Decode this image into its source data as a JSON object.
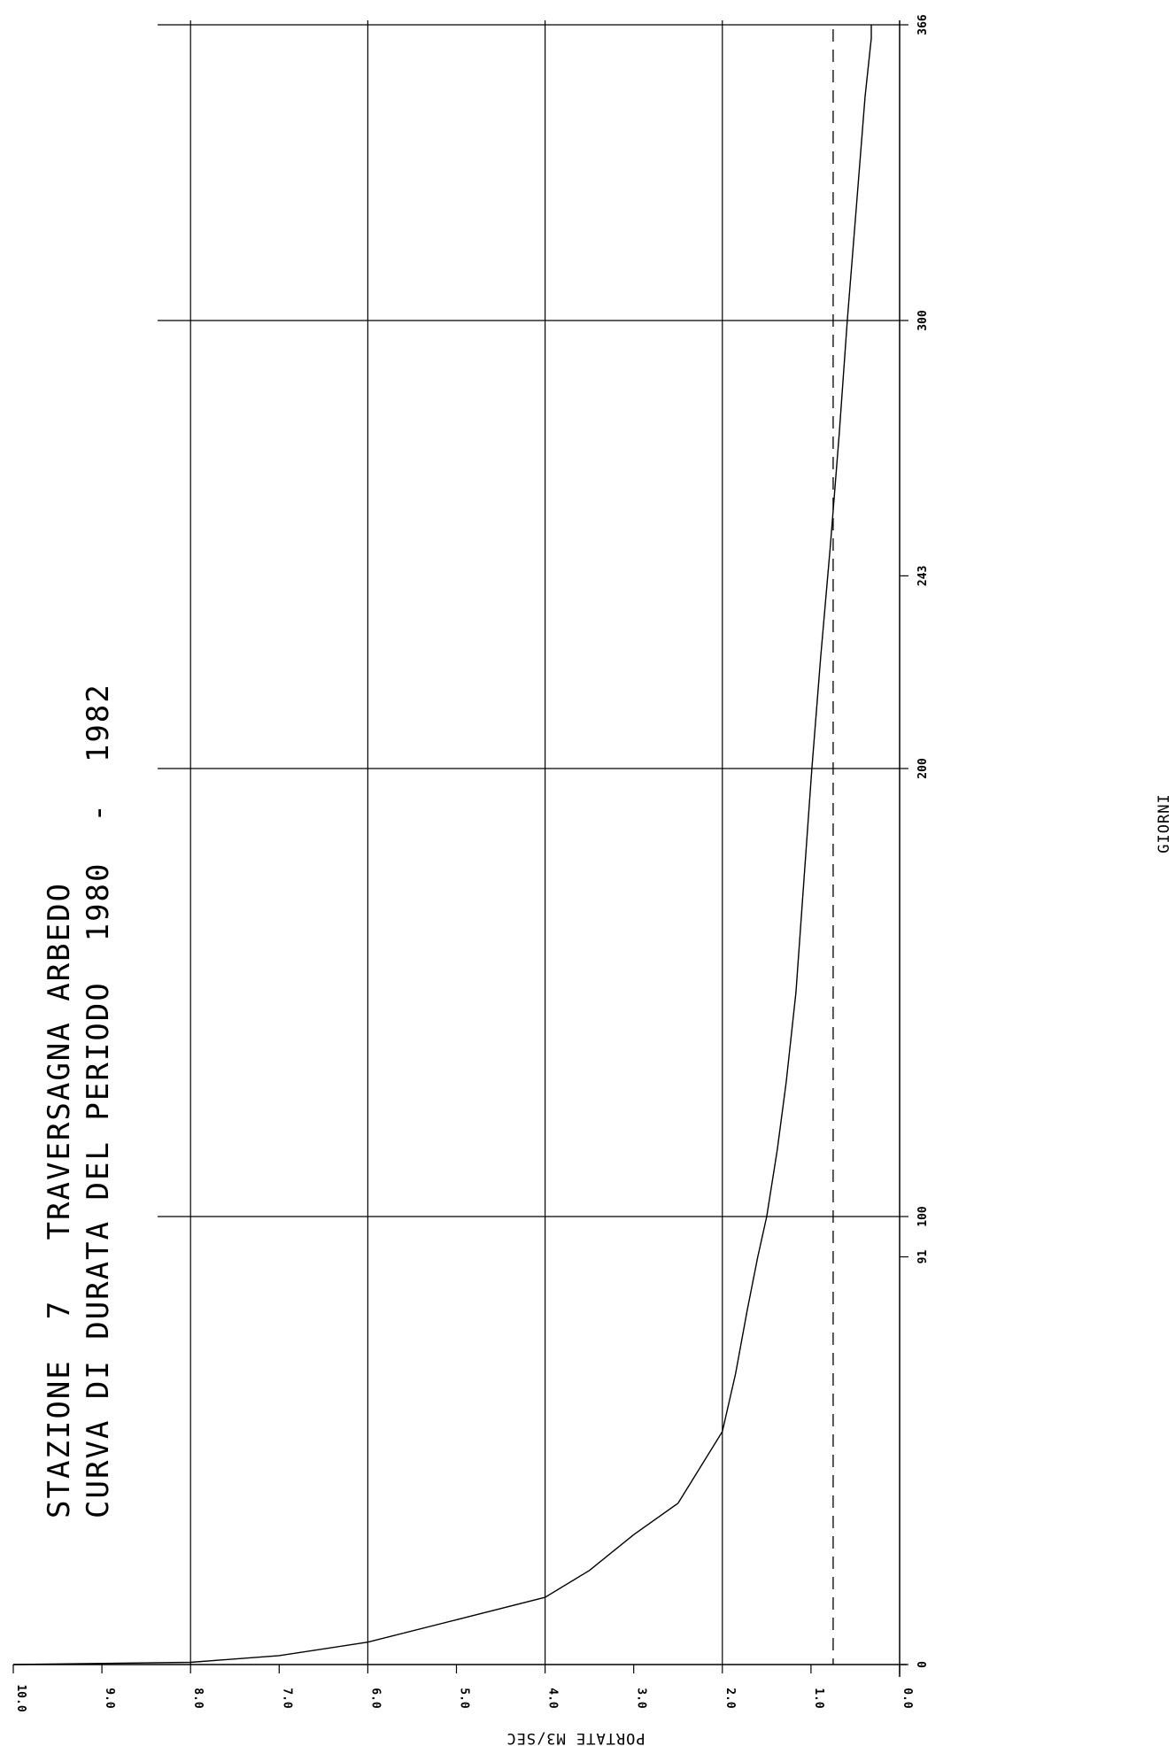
{
  "chart_data": {
    "type": "line",
    "title": "STAZIONE  7   TRAVERSAGNA ARBEDO",
    "subtitle": "CURVA DI DURATA DEL PERIODO  1980  -  1982",
    "xlabel": "GIORNI",
    "ylabel": "PORTATE M3/SEC",
    "xlim": [
      0,
      366
    ],
    "ylim": [
      0,
      10
    ],
    "x_tick_labels": [
      "0",
      "91",
      "100",
      "200",
      "243",
      "300",
      "366"
    ],
    "y_tick_labels": [
      "0.0",
      "1.0",
      "2.0",
      "3.0",
      "4.0",
      "5.0",
      "6.0",
      "7.0",
      "8.0",
      "9.0",
      "10.0"
    ],
    "vertical_grid_days": [
      100,
      200,
      300,
      366
    ],
    "horizontal_grid_values": [
      2,
      4,
      6,
      8
    ],
    "reference_line": {
      "value": 0.75,
      "style": "dashed"
    },
    "grid": true,
    "series": [
      {
        "x": [
          0,
          0.5,
          2,
          5,
          10,
          15,
          21,
          29,
          36,
          52,
          65,
          79,
          91,
          100,
          115,
          130,
          150,
          175,
          200,
          225,
          250,
          275,
          300,
          325,
          350,
          363,
          366
        ],
        "y": [
          10.0,
          8.0,
          7.0,
          6.0,
          5.0,
          4.0,
          3.5,
          3.0,
          2.5,
          2.0,
          1.85,
          1.72,
          1.6,
          1.5,
          1.38,
          1.28,
          1.17,
          1.08,
          0.99,
          0.89,
          0.78,
          0.68,
          0.59,
          0.49,
          0.39,
          0.32,
          0.32
        ]
      }
    ]
  }
}
